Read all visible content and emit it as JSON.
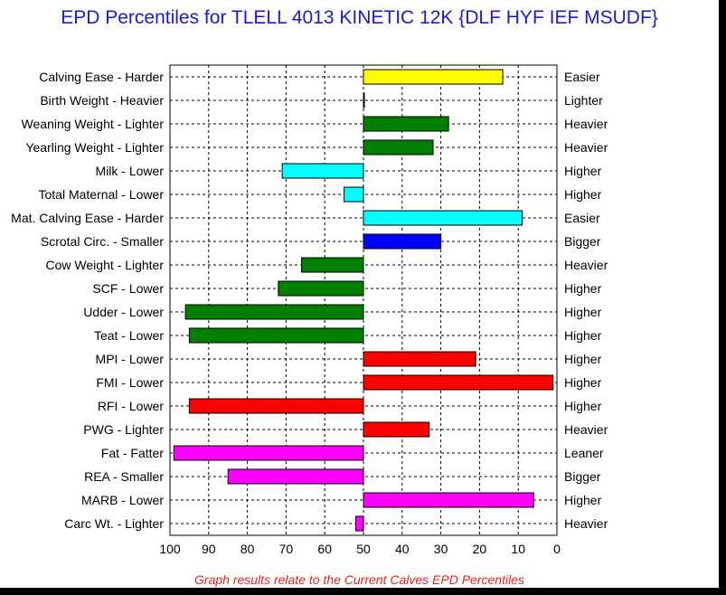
{
  "chart_data": {
    "type": "bar",
    "orientation": "horizontal",
    "title": "EPD Percentiles for TLELL 4013 KINETIC 12K {DLF HYF IEF MSUDF}",
    "footnote": "Graph results relate to the Current Calves EPD Percentiles",
    "x_axis": {
      "min": 100,
      "max": 0,
      "reversed": true,
      "baseline": 50,
      "ticks": [
        "100",
        "90",
        "80",
        "70",
        "60",
        "50",
        "40",
        "30",
        "20",
        "10",
        "0"
      ]
    },
    "grid": true,
    "colors": {
      "yellow": "#ffff00",
      "green": "#007f00",
      "cyan": "#00ffff",
      "blue": "#0000ff",
      "red": "#ff0000",
      "magenta": "#ff00ff"
    },
    "bars": [
      {
        "left": "Calving Ease - Harder",
        "right": "Easier",
        "value": 14,
        "color": "yellow"
      },
      {
        "left": "Birth Weight - Heavier",
        "right": "Lighter",
        "value": 50,
        "color": "green"
      },
      {
        "left": "Weaning Weight - Lighter",
        "right": "Heavier",
        "value": 28,
        "color": "green"
      },
      {
        "left": "Yearling Weight - Lighter",
        "right": "Heavier",
        "value": 32,
        "color": "green"
      },
      {
        "left": "Milk - Lower",
        "right": "Higher",
        "value": 71,
        "color": "cyan"
      },
      {
        "left": "Total Maternal - Lower",
        "right": "Higher",
        "value": 55,
        "color": "cyan"
      },
      {
        "left": "Mat. Calving Ease - Harder",
        "right": "Easier",
        "value": 9,
        "color": "cyan"
      },
      {
        "left": "Scrotal Circ. - Smaller",
        "right": "Bigger",
        "value": 30,
        "color": "blue"
      },
      {
        "left": "Cow Weight - Lighter",
        "right": "Heavier",
        "value": 66,
        "color": "green"
      },
      {
        "left": "SCF - Lower",
        "right": "Higher",
        "value": 72,
        "color": "green"
      },
      {
        "left": "Udder - Lower",
        "right": "Higher",
        "value": 96,
        "color": "green"
      },
      {
        "left": "Teat - Lower",
        "right": "Higher",
        "value": 95,
        "color": "green"
      },
      {
        "left": "MPI - Lower",
        "right": "Higher",
        "value": 21,
        "color": "red"
      },
      {
        "left": "FMI - Lower",
        "right": "Higher",
        "value": 1,
        "color": "red"
      },
      {
        "left": "RFI - Lower",
        "right": "Higher",
        "value": 95,
        "color": "red"
      },
      {
        "left": "PWG - Lighter",
        "right": "Heavier",
        "value": 33,
        "color": "red"
      },
      {
        "left": "Fat - Fatter",
        "right": "Leaner",
        "value": 99,
        "color": "magenta"
      },
      {
        "left": "REA - Smaller",
        "right": "Bigger",
        "value": 85,
        "color": "magenta"
      },
      {
        "left": "MARB - Lower",
        "right": "Higher",
        "value": 6,
        "color": "magenta"
      },
      {
        "left": "Carc Wt. - Lighter",
        "right": "Heavier",
        "value": 52,
        "color": "magenta"
      }
    ]
  }
}
